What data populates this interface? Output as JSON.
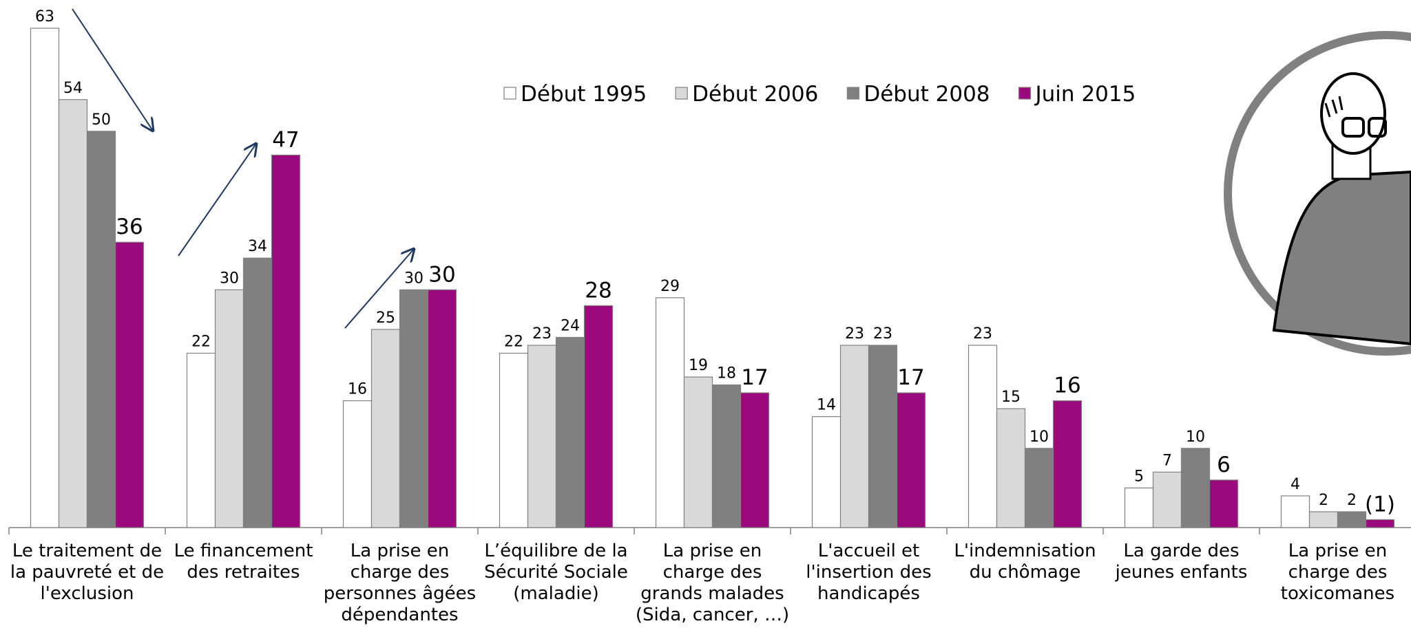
{
  "chart_data": {
    "type": "bar",
    "categories": [
      "Le traitement de\nla pauvreté et de\nl'exclusion",
      "Le financement\ndes retraites",
      "La prise en\ncharge des\npersonnes âgées\ndépendantes",
      "L’équilibre de la\nSécurité Sociale\n(maladie)",
      "La prise en\ncharge des\ngrands malades\n(Sida, cancer, …)",
      "L'accueil et\nl'insertion des\nhandicapés",
      "L'indemnisation\ndu chômage",
      "La garde des\njeunes enfants",
      "La prise en\ncharge des\ntoxicomanes"
    ],
    "series": [
      {
        "name": "Début 1995",
        "color": "#ffffff",
        "values": [
          63,
          22,
          16,
          22,
          29,
          14,
          23,
          5,
          4
        ]
      },
      {
        "name": "Début 2006",
        "color": "#d9d9d9",
        "values": [
          54,
          30,
          25,
          23,
          19,
          23,
          15,
          7,
          2
        ]
      },
      {
        "name": "Début 2008",
        "color": "#808080",
        "values": [
          50,
          34,
          30,
          24,
          18,
          23,
          10,
          10,
          2
        ]
      },
      {
        "name": "Juin 2015",
        "color": "#9b0a7d",
        "values": [
          36,
          47,
          30,
          28,
          17,
          17,
          16,
          6,
          1
        ],
        "value_labels": [
          "36",
          "47",
          "30",
          "28",
          "17",
          "17",
          "16",
          "6",
          "(1)"
        ]
      }
    ],
    "ylim": [
      0,
      65
    ]
  }
}
